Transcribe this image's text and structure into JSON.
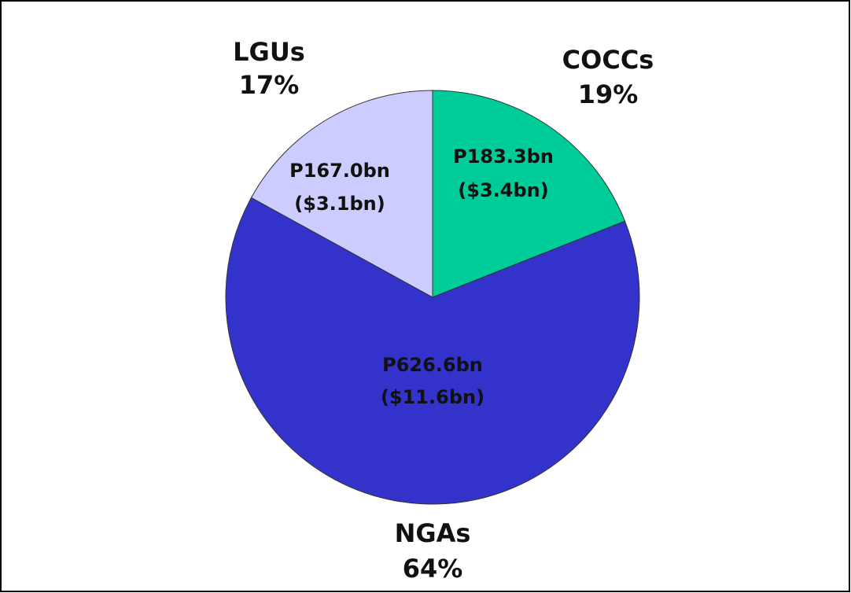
{
  "chart_data": {
    "type": "pie",
    "categories": [
      "COCCs",
      "NGAs",
      "LGUs"
    ],
    "values": [
      19,
      64,
      17
    ],
    "value_labels": [
      "19%",
      "64%",
      "17%"
    ],
    "colors": [
      "#00cc99",
      "#3333cc",
      "#ccccff"
    ],
    "amount_labels": [
      "P183.3bn",
      "P626.6bn",
      "P167.0bn"
    ],
    "usd_labels": [
      "($3.4bn)",
      "($11.6bn)",
      "($3.1bn)"
    ]
  }
}
